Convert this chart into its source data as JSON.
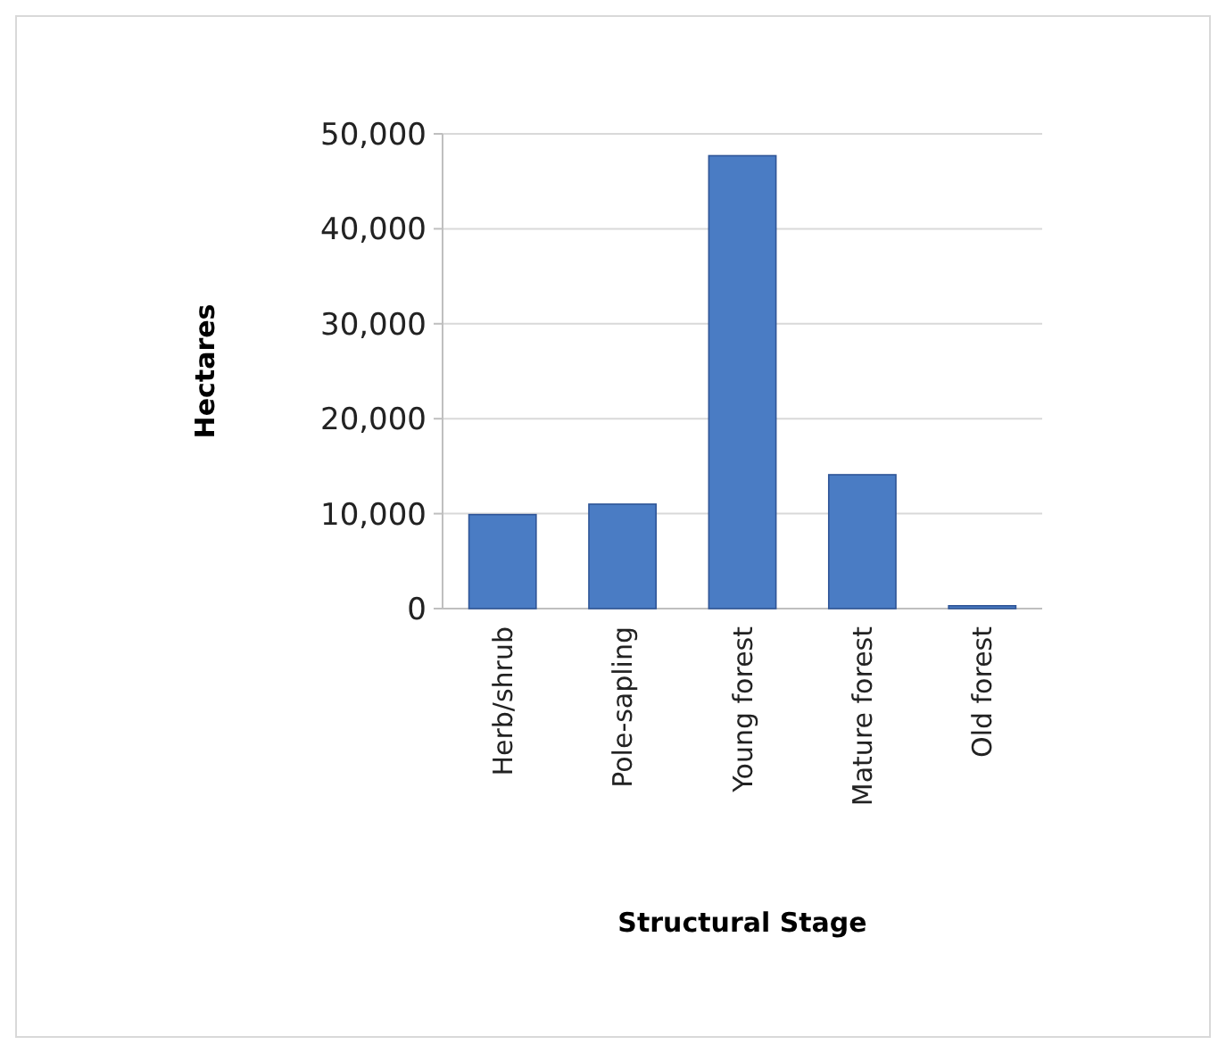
{
  "chart_data": {
    "type": "bar",
    "xlabel": "Structural Stage",
    "ylabel": "Hectares",
    "categories": [
      "Herb/shrub",
      "Pole-sapling",
      "Young forest",
      "Mature forest",
      "Old forest"
    ],
    "values": [
      9900,
      11000,
      47700,
      14100,
      300
    ],
    "color": "#4a7cc4",
    "ylim": [
      0,
      50000
    ],
    "yticks": [
      {
        "value": 0,
        "label": "0"
      },
      {
        "value": 10000,
        "label": "10,000"
      },
      {
        "value": 20000,
        "label": "20,000"
      },
      {
        "value": 30000,
        "label": "30,000"
      },
      {
        "value": 40000,
        "label": "40,000"
      },
      {
        "value": 50000,
        "label": "50,000"
      }
    ],
    "grid": true
  }
}
